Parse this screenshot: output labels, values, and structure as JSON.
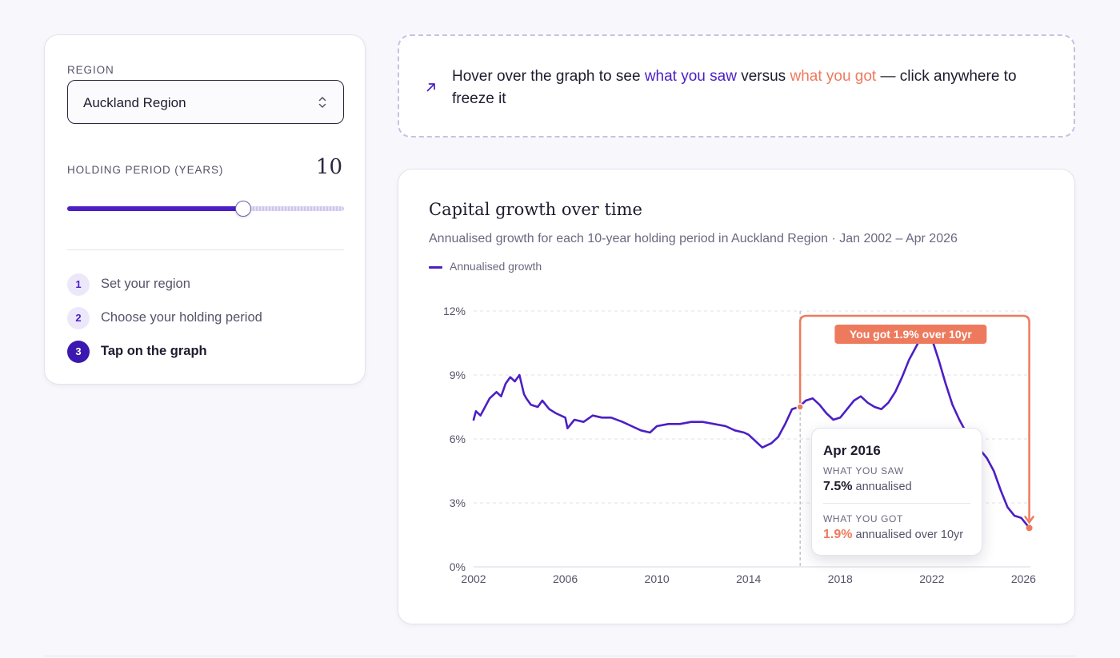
{
  "sidebar": {
    "region_label": "REGION",
    "region_value": "Auckland Region",
    "holding_label": "HOLDING PERIOD (YEARS)",
    "holding_value": "10",
    "slider_fraction": 0.635,
    "steps": [
      {
        "num": "1",
        "label": "Set your region",
        "active": false
      },
      {
        "num": "2",
        "label": "Choose your holding period",
        "active": false
      },
      {
        "num": "3",
        "label": "Tap on the graph",
        "active": true
      }
    ]
  },
  "hint": {
    "prefix": "Hover over the graph to see ",
    "saw": "what you saw",
    "middle": " versus ",
    "got": "what you got",
    "suffix": " — click anywhere to freeze it",
    "icon": "arrow-up-right-icon"
  },
  "chart_card": {
    "title": "Capital growth over time",
    "subtitle": "Annualised growth for each 10-year holding period in Auckland Region · Jan 2002 – Apr 2026",
    "legend_label": "Annualised growth"
  },
  "callout": {
    "label": "You got 1.9% over 10yr"
  },
  "tooltip": {
    "date": "Apr 2016",
    "saw_label": "WHAT YOU SAW",
    "saw_value": "7.5%",
    "saw_suffix": "annualised",
    "got_label": "WHAT YOU GOT",
    "got_value": "1.9%",
    "got_suffix": "annualised over 10yr"
  },
  "colors": {
    "series": "#4c1fc4",
    "accent_got": "#ee7a5e",
    "tooltip_got": "#ee7a5e"
  },
  "chart_data": {
    "type": "line",
    "series": [
      {
        "name": "Annualised growth",
        "x": [
          2002.0,
          2002.1,
          2002.3,
          2002.5,
          2002.7,
          2003.0,
          2003.2,
          2003.4,
          2003.6,
          2003.8,
          2004.0,
          2004.2,
          2004.3,
          2004.5,
          2004.8,
          2005.0,
          2005.3,
          2005.6,
          2006.0,
          2006.1,
          2006.4,
          2006.8,
          2007.2,
          2007.6,
          2008.0,
          2008.5,
          2008.9,
          2009.3,
          2009.7,
          2010.0,
          2010.5,
          2011.0,
          2011.5,
          2012.0,
          2012.5,
          2013.0,
          2013.4,
          2013.8,
          2014.0,
          2014.3,
          2014.6,
          2015.0,
          2015.3,
          2015.6,
          2015.9,
          2016.2,
          2016.5,
          2016.8,
          2017.1,
          2017.4,
          2017.7,
          2018.0,
          2018.3,
          2018.6,
          2018.9,
          2019.2,
          2019.5,
          2019.8,
          2020.1,
          2020.4,
          2020.7,
          2021.0,
          2021.3,
          2021.6,
          2021.8,
          2022.0,
          2022.3,
          2022.6,
          2022.9,
          2023.2,
          2023.5,
          2023.8,
          2024.1,
          2024.4,
          2024.7,
          2025.0,
          2025.3,
          2025.6,
          2025.9,
          2026.2
        ],
        "y": [
          6.9,
          7.3,
          7.1,
          7.5,
          7.9,
          8.2,
          8.0,
          8.6,
          8.9,
          8.7,
          9.0,
          8.1,
          7.9,
          7.6,
          7.5,
          7.8,
          7.4,
          7.2,
          7.0,
          6.5,
          6.9,
          6.8,
          7.1,
          7.0,
          7.0,
          6.8,
          6.6,
          6.4,
          6.3,
          6.6,
          6.7,
          6.7,
          6.8,
          6.8,
          6.7,
          6.6,
          6.4,
          6.3,
          6.2,
          5.9,
          5.6,
          5.8,
          6.1,
          6.7,
          7.4,
          7.5,
          7.8,
          7.9,
          7.6,
          7.2,
          6.9,
          7.0,
          7.4,
          7.8,
          8.0,
          7.7,
          7.5,
          7.4,
          7.7,
          8.2,
          8.9,
          9.7,
          10.3,
          10.9,
          11.2,
          10.7,
          9.7,
          8.6,
          7.6,
          6.9,
          6.3,
          5.9,
          5.5,
          5.1,
          4.5,
          3.6,
          2.8,
          2.4,
          2.3,
          1.9
        ]
      }
    ],
    "ylim": [
      0,
      12
    ],
    "yticks": [
      "0%",
      "3%",
      "6%",
      "9%",
      "12%"
    ],
    "ytick_values": [
      0,
      3,
      6,
      9,
      12
    ],
    "xlim": [
      2002,
      2026.3
    ],
    "xticks": [
      "2002",
      "2006",
      "2010",
      "2014",
      "2018",
      "2022",
      "2026"
    ],
    "xtick_values": [
      2002,
      2006,
      2010,
      2014,
      2018,
      2022,
      2026
    ],
    "selected": {
      "x": 2016.25,
      "y_saw": 7.5,
      "x_end": 2026.25,
      "y_got": 1.9
    },
    "grid": true,
    "legend_position": "top-left"
  }
}
